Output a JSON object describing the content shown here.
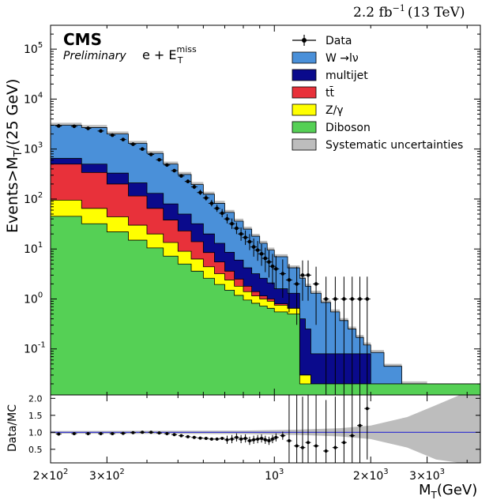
{
  "header": {
    "lumi_text": "2.2 fb",
    "lumi_exp": "−1",
    "lumi_energy": "(13 TeV)"
  },
  "labels": {
    "cms": "CMS",
    "preliminary": "Preliminary",
    "channel_base": "e + E",
    "channel_sub": "T",
    "channel_sup": "miss"
  },
  "chart_data": [
    {
      "type": "area",
      "stacked": true,
      "log_y": true,
      "log_x": true,
      "ylabel": "Events>M",
      "ylabel_sub": "T",
      "ylabel_tail": "/(25 GeV)",
      "ylim": [
        0.012,
        300000
      ],
      "xlim": [
        200,
        4400
      ],
      "y_ticks": [
        {
          "v": 0.1,
          "label": "10",
          "exp": "-1"
        },
        {
          "v": 1,
          "label": "10",
          "exp": "0"
        },
        {
          "v": 10,
          "label": "10",
          "exp": "1"
        },
        {
          "v": 100,
          "label": "10",
          "exp": "2"
        },
        {
          "v": 1000,
          "label": "10",
          "exp": "3"
        },
        {
          "v": 10000,
          "label": "10",
          "exp": "4"
        },
        {
          "v": 100000,
          "label": "10",
          "exp": "5"
        }
      ],
      "legend_position": "top-right",
      "colors": {
        "wlnu": "#4a90d9",
        "multijet": "#0a0a8c",
        "ttbar": "#e8313a",
        "zgamma": "#ffff00",
        "diboson": "#55d055",
        "syst": "#bdbdbd",
        "data": "#000000"
      },
      "legend": [
        {
          "key": "data",
          "label": "Data"
        },
        {
          "key": "wlnu",
          "label": "W →lν"
        },
        {
          "key": "multijet",
          "label": "multijet"
        },
        {
          "key": "ttbar",
          "label": "tt̄"
        },
        {
          "key": "zgamma",
          "label": "Z/γ"
        },
        {
          "key": "diboson",
          "label": "Diboson"
        },
        {
          "key": "syst",
          "label": "Systematic uncertainties"
        }
      ],
      "x": [
        200,
        250,
        300,
        350,
        400,
        450,
        500,
        550,
        600,
        650,
        700,
        750,
        800,
        850,
        900,
        950,
        1000,
        1100,
        1200,
        1250,
        1300,
        1400,
        1500,
        1600,
        1700,
        1800,
        1900,
        2000,
        2200,
        2500,
        3000
      ],
      "stack_tops": {
        "diboson": [
          45,
          32,
          22,
          15,
          10.5,
          7.2,
          5,
          3.6,
          2.6,
          1.95,
          1.5,
          1.18,
          0.95,
          0.82,
          0.72,
          0.65,
          0.55,
          0.5,
          0.02,
          0.02,
          0.02,
          0.02,
          0.02,
          0.02,
          0.02,
          0.02,
          0.02,
          0.02,
          0.02,
          0.02,
          0.02
        ],
        "zgamma": [
          95,
          65,
          44,
          30,
          20,
          13.5,
          9,
          6.3,
          4.4,
          3.2,
          2.4,
          1.8,
          1.4,
          1.15,
          1.0,
          0.9,
          0.75,
          0.65,
          0.03,
          0.03,
          0.02,
          0.02,
          0.02,
          0.02,
          0.02,
          0.02,
          0.02,
          0.02,
          0.02,
          0.02,
          0.02
        ],
        "ttbar": [
          500,
          340,
          200,
          115,
          65,
          38,
          23,
          14,
          8.5,
          5.5,
          3.6,
          2.5,
          1.8,
          1.4,
          1.15,
          1.0,
          0.8,
          0.65,
          0.03,
          0.03,
          0.02,
          0.02,
          0.02,
          0.02,
          0.02,
          0.02,
          0.02,
          0.02,
          0.02,
          0.02,
          0.02
        ],
        "multijet": [
          650,
          500,
          330,
          210,
          130,
          80,
          50,
          32,
          20,
          13,
          8.6,
          6,
          4.2,
          3.2,
          2.6,
          2.1,
          1.6,
          1.3,
          0.4,
          0.25,
          0.08,
          0.08,
          0.08,
          0.08,
          0.08,
          0.08,
          0.08,
          0.02,
          0.02,
          0.02,
          0.02
        ],
        "wlnu": [
          3000,
          2700,
          2000,
          1300,
          820,
          500,
          310,
          195,
          125,
          82,
          54,
          36,
          25,
          18,
          13,
          9.5,
          7,
          4.2,
          2.6,
          1.8,
          1.3,
          0.85,
          0.55,
          0.37,
          0.25,
          0.17,
          0.12,
          0.085,
          0.045,
          0.02,
          0.012
        ]
      },
      "data_points": [
        {
          "x": 212,
          "y": 2900
        },
        {
          "x": 237,
          "y": 2850
        },
        {
          "x": 262,
          "y": 2600
        },
        {
          "x": 287,
          "y": 2300
        },
        {
          "x": 312,
          "y": 1900
        },
        {
          "x": 337,
          "y": 1550
        },
        {
          "x": 362,
          "y": 1250
        },
        {
          "x": 387,
          "y": 1000
        },
        {
          "x": 412,
          "y": 780
        },
        {
          "x": 437,
          "y": 610
        },
        {
          "x": 462,
          "y": 480
        },
        {
          "x": 487,
          "y": 370
        },
        {
          "x": 512,
          "y": 290
        },
        {
          "x": 537,
          "y": 225
        },
        {
          "x": 562,
          "y": 175
        },
        {
          "x": 587,
          "y": 135
        },
        {
          "x": 612,
          "y": 105
        },
        {
          "x": 637,
          "y": 82
        },
        {
          "x": 662,
          "y": 65
        },
        {
          "x": 687,
          "y": 52
        },
        {
          "x": 712,
          "y": 40
        },
        {
          "x": 737,
          "y": 32
        },
        {
          "x": 762,
          "y": 26
        },
        {
          "x": 787,
          "y": 20
        },
        {
          "x": 812,
          "y": 17
        },
        {
          "x": 837,
          "y": 14
        },
        {
          "x": 862,
          "y": 11
        },
        {
          "x": 887,
          "y": 9.5
        },
        {
          "x": 912,
          "y": 8
        },
        {
          "x": 937,
          "y": 6.5
        },
        {
          "x": 962,
          "y": 5.5
        },
        {
          "x": 987,
          "y": 4.5
        },
        {
          "x": 1012,
          "y": 4
        },
        {
          "x": 1062,
          "y": 3.2
        },
        {
          "x": 1112,
          "y": 2.4
        },
        {
          "x": 1175,
          "y": 2
        },
        {
          "x": 1225,
          "y": 3
        },
        {
          "x": 1275,
          "y": 3
        },
        {
          "x": 1350,
          "y": 2
        },
        {
          "x": 1450,
          "y": 1
        },
        {
          "x": 1550,
          "y": 1
        },
        {
          "x": 1650,
          "y": 1
        },
        {
          "x": 1750,
          "y": 1
        },
        {
          "x": 1850,
          "y": 1
        },
        {
          "x": 1950,
          "y": 1
        }
      ]
    },
    {
      "type": "scatter",
      "ylabel": "Data/MC",
      "ylim": [
        0.1,
        2.1
      ],
      "y_ticks": [
        {
          "v": 0.5,
          "label": "0.5"
        },
        {
          "v": 1.0,
          "label": "1.0"
        },
        {
          "v": 1.5,
          "label": "1.5"
        },
        {
          "v": 2.0,
          "label": "2.0"
        }
      ],
      "x_ticks": [
        {
          "v": 200,
          "label": "2×10",
          "exp": "2"
        },
        {
          "v": 300,
          "label": "3×10",
          "exp": "2"
        },
        {
          "v": 1000,
          "label": "10",
          "exp": "3"
        },
        {
          "v": 2000,
          "label": "2×10",
          "exp": "3"
        },
        {
          "v": 3000,
          "label": "3×10",
          "exp": "3"
        }
      ],
      "xlabel": "M",
      "xlabel_sub": "T",
      "xlabel_tail": "(GeV)",
      "reference_line": 1.0,
      "ratio_points": [
        {
          "x": 212,
          "y": 0.95
        },
        {
          "x": 237,
          "y": 0.96
        },
        {
          "x": 262,
          "y": 0.96
        },
        {
          "x": 287,
          "y": 0.96
        },
        {
          "x": 312,
          "y": 0.96
        },
        {
          "x": 337,
          "y": 0.97
        },
        {
          "x": 362,
          "y": 0.99
        },
        {
          "x": 387,
          "y": 1.0
        },
        {
          "x": 412,
          "y": 1.0
        },
        {
          "x": 437,
          "y": 0.98
        },
        {
          "x": 462,
          "y": 0.96
        },
        {
          "x": 487,
          "y": 0.93
        },
        {
          "x": 512,
          "y": 0.9
        },
        {
          "x": 537,
          "y": 0.87
        },
        {
          "x": 562,
          "y": 0.85
        },
        {
          "x": 587,
          "y": 0.83
        },
        {
          "x": 612,
          "y": 0.82
        },
        {
          "x": 637,
          "y": 0.8
        },
        {
          "x": 662,
          "y": 0.8
        },
        {
          "x": 687,
          "y": 0.82
        },
        {
          "x": 712,
          "y": 0.78
        },
        {
          "x": 737,
          "y": 0.8
        },
        {
          "x": 762,
          "y": 0.85
        },
        {
          "x": 787,
          "y": 0.8
        },
        {
          "x": 812,
          "y": 0.82
        },
        {
          "x": 837,
          "y": 0.75
        },
        {
          "x": 862,
          "y": 0.78
        },
        {
          "x": 887,
          "y": 0.8
        },
        {
          "x": 912,
          "y": 0.82
        },
        {
          "x": 937,
          "y": 0.78
        },
        {
          "x": 962,
          "y": 0.75
        },
        {
          "x": 987,
          "y": 0.8
        },
        {
          "x": 1012,
          "y": 0.85
        },
        {
          "x": 1062,
          "y": 0.9
        },
        {
          "x": 1112,
          "y": 0.75
        },
        {
          "x": 1175,
          "y": 0.6
        },
        {
          "x": 1225,
          "y": 0.55
        },
        {
          "x": 1275,
          "y": 0.7
        },
        {
          "x": 1350,
          "y": 0.6
        },
        {
          "x": 1450,
          "y": 0.45
        },
        {
          "x": 1550,
          "y": 0.55
        },
        {
          "x": 1650,
          "y": 0.7
        },
        {
          "x": 1750,
          "y": 0.9
        },
        {
          "x": 1850,
          "y": 1.2
        },
        {
          "x": 1950,
          "y": 1.7
        }
      ]
    }
  ]
}
